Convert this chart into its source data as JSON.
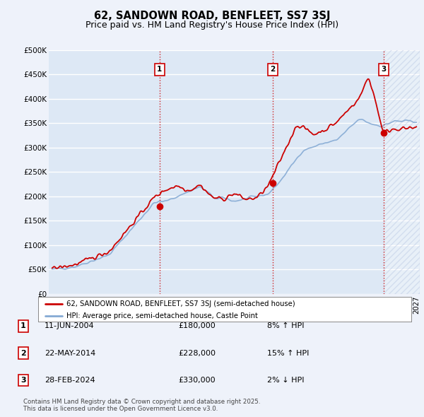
{
  "title": "62, SANDOWN ROAD, BENFLEET, SS7 3SJ",
  "subtitle": "Price paid vs. HM Land Registry's House Price Index (HPI)",
  "ylim": [
    0,
    500000
  ],
  "yticks": [
    0,
    50000,
    100000,
    150000,
    200000,
    250000,
    300000,
    350000,
    400000,
    450000,
    500000
  ],
  "ytick_labels": [
    "£0",
    "£50K",
    "£100K",
    "£150K",
    "£200K",
    "£250K",
    "£300K",
    "£350K",
    "£400K",
    "£450K",
    "£500K"
  ],
  "background_color": "#eef2fa",
  "plot_bg": "#dde8f5",
  "grid_color": "#ffffff",
  "red_color": "#cc0000",
  "blue_color": "#85aad4",
  "vline_color": "#cc0000",
  "sale_years": [
    2004.44,
    2014.38,
    2024.16
  ],
  "sale_prices": [
    180000,
    228000,
    330000
  ],
  "sale_labels": [
    "1",
    "2",
    "3"
  ],
  "legend_entries": [
    "62, SANDOWN ROAD, BENFLEET, SS7 3SJ (semi-detached house)",
    "HPI: Average price, semi-detached house, Castle Point"
  ],
  "table_data": [
    {
      "num": "1",
      "date": "11-JUN-2004",
      "price": "£180,000",
      "change": "8% ↑ HPI"
    },
    {
      "num": "2",
      "date": "22-MAY-2014",
      "price": "£228,000",
      "change": "15% ↑ HPI"
    },
    {
      "num": "3",
      "date": "28-FEB-2024",
      "price": "£330,000",
      "change": "2% ↓ HPI"
    }
  ],
  "footnote": "Contains HM Land Registry data © Crown copyright and database right 2025.\nThis data is licensed under the Open Government Licence v3.0.",
  "title_fontsize": 10.5,
  "subtitle_fontsize": 9,
  "tick_fontsize": 7.5,
  "xlim_left": 1994.7,
  "xlim_right": 2027.3
}
